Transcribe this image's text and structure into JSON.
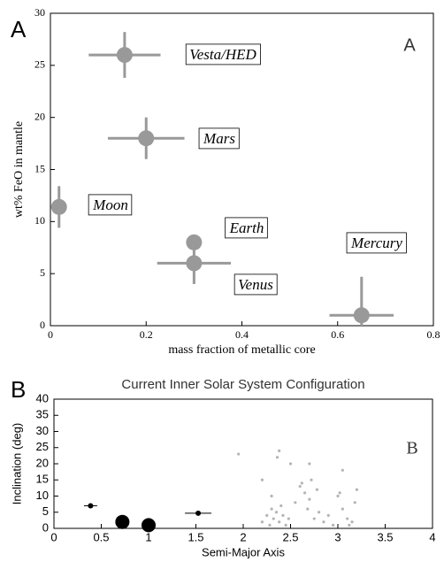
{
  "chart_data": [
    {
      "type": "scatter",
      "panel_label": "A",
      "inset_label": "A",
      "xlabel": "mass fraction of metallic core",
      "ylabel": "wt% FeO in mantle",
      "xlim": [
        0,
        0.8
      ],
      "ylim": [
        0,
        30
      ],
      "xticks": [
        0,
        0.2,
        0.4,
        0.6,
        0.8
      ],
      "yticks": [
        0,
        5,
        10,
        15,
        20,
        25,
        30
      ],
      "series": [
        {
          "color": "#999999",
          "labels": [
            "Vesta/HED",
            "Mars",
            "Moon",
            "Earth",
            "Venus",
            "Mercury"
          ],
          "x": [
            0.155,
            0.2,
            0.018,
            0.3,
            0.3,
            0.65
          ],
          "y": [
            26,
            18,
            11.4,
            8,
            6,
            1
          ],
          "xerr": [
            0.075,
            0.08,
            null,
            null,
            0.077,
            0.067
          ],
          "yerr": [
            2.2,
            2,
            2,
            null,
            2,
            3.7
          ]
        }
      ]
    },
    {
      "type": "scatter",
      "title": "Current Inner Solar System Configuration",
      "panel_label": "B",
      "inset_label": "B",
      "xlabel": "Semi-Major Axis",
      "ylabel": "Inclination (deg)",
      "xlim": [
        0,
        4
      ],
      "ylim": [
        0,
        40
      ],
      "xticks": [
        0,
        0.5,
        1,
        1.5,
        2,
        2.5,
        3,
        3.5,
        4
      ],
      "yticks": [
        0,
        5,
        10,
        15,
        20,
        25,
        30,
        35,
        40
      ],
      "series": [
        {
          "color": "#000000",
          "x": [
            0.387,
            0.723,
            1,
            1.524
          ],
          "y": [
            7,
            2,
            1,
            4.7
          ],
          "xerr": [
            0.07,
            null,
            null,
            0.14
          ]
        },
        {
          "color": "#777777",
          "x": [
            2.2,
            2.25,
            2.28,
            2.3,
            2.32,
            2.35,
            2.38,
            2.4,
            2.42,
            2.45,
            2.48,
            2.36,
            2.38,
            2.55,
            2.6,
            2.62,
            2.65,
            2.68,
            2.7,
            2.72,
            2.75,
            2.78,
            2.8,
            2.85,
            2.9,
            2.95,
            3.0,
            3.02,
            3.05,
            3.1,
            3.12,
            3.15,
            3.18,
            3.05,
            2.7,
            2.3,
            2.2,
            3.2,
            1.95,
            2.5
          ],
          "y": [
            2,
            4,
            1,
            6,
            3,
            5,
            2,
            7,
            4,
            1,
            3,
            22,
            24,
            8,
            13,
            14,
            11,
            6,
            9,
            15,
            3,
            12,
            5,
            2,
            4,
            1,
            10,
            11,
            6,
            3,
            1,
            2,
            8,
            18,
            20,
            10,
            15,
            12,
            23,
            20
          ]
        }
      ]
    }
  ]
}
